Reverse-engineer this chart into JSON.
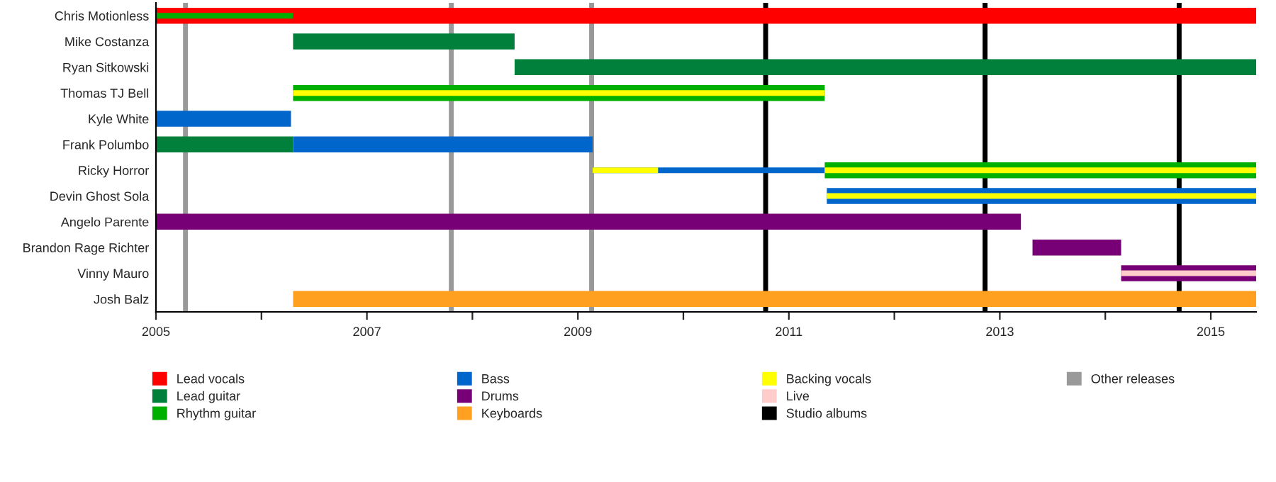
{
  "chart_data": {
    "type": "bar",
    "orientation": "horizontal",
    "categories": [
      "Chris Motionless",
      "Mike Costanza",
      "Ryan Sitkowski",
      "Thomas TJ Bell",
      "Kyle White",
      "Frank Polumbo",
      "Ricky Horror",
      "Devin Ghost Sola",
      "Angelo Parente",
      "Brandon Rage Richter",
      "Vinny Mauro",
      "Josh Balz"
    ],
    "series": [
      {
        "name": "Lead vocals",
        "color": "#ff0000",
        "base": [
          2005,
          null,
          null,
          null,
          null,
          null,
          null,
          null,
          null,
          null,
          null,
          null
        ],
        "values": [
          10.43,
          null,
          null,
          null,
          null,
          null,
          null,
          null,
          null,
          null,
          null,
          null
        ]
      },
      {
        "name": "Lead guitar",
        "color": "#00803a",
        "base": [
          null,
          2006.3,
          2008.4,
          null,
          null,
          2005,
          null,
          null,
          null,
          null,
          null,
          null
        ],
        "values": [
          null,
          2.1,
          7.03,
          null,
          null,
          1.3,
          null,
          null,
          null,
          null,
          null,
          null
        ]
      },
      {
        "name": "Rhythm guitar",
        "color": "#00b000",
        "base": [
          2005,
          null,
          null,
          2006.3,
          null,
          null,
          2011.34,
          null,
          null,
          null,
          null,
          null
        ],
        "values": [
          1.3,
          null,
          null,
          5.04,
          null,
          null,
          4.09,
          null,
          null,
          null,
          null,
          null
        ]
      },
      {
        "name": "Bass",
        "color": "#0066cc",
        "base": [
          null,
          null,
          null,
          null,
          2005,
          2006.3,
          2009.14,
          2011.36,
          null,
          null,
          null,
          null
        ],
        "values": [
          null,
          null,
          null,
          null,
          1.28,
          2.84,
          2.2,
          4.07,
          null,
          null,
          null,
          null
        ]
      },
      {
        "name": "Drums",
        "color": "#770077",
        "base": [
          null,
          null,
          null,
          null,
          null,
          null,
          null,
          null,
          2005,
          2013.31,
          2014.15,
          null
        ],
        "values": [
          null,
          null,
          null,
          null,
          null,
          null,
          null,
          null,
          8.2,
          0.84,
          1.28,
          null
        ]
      },
      {
        "name": "Keyboards",
        "color": "#ffa020",
        "base": [
          null,
          null,
          null,
          null,
          null,
          null,
          null,
          null,
          null,
          null,
          null,
          2006.3
        ],
        "values": [
          null,
          null,
          null,
          null,
          null,
          null,
          null,
          null,
          null,
          null,
          null,
          9.13
        ]
      },
      {
        "name": "Backing vocals",
        "color": "#ffff00",
        "base": [
          null,
          null,
          null,
          2006.3,
          null,
          null,
          2009.14,
          2011.36,
          null,
          null,
          null,
          null
        ],
        "values": [
          null,
          null,
          null,
          5.04,
          null,
          null,
          0.62,
          4.07,
          null,
          null,
          null,
          null
        ]
      },
      {
        "color": "#ffff00",
        "base": [
          null,
          null,
          null,
          null,
          null,
          null,
          2011.34,
          null,
          null,
          null,
          null,
          null
        ],
        "values": [
          null,
          null,
          null,
          null,
          null,
          null,
          4.09,
          null,
          null,
          null,
          null,
          null
        ]
      },
      {
        "name": "Live",
        "color": "#ffcccc",
        "base": [
          null,
          null,
          null,
          null,
          null,
          null,
          null,
          null,
          null,
          null,
          2014.15,
          null
        ],
        "values": [
          null,
          null,
          null,
          null,
          null,
          null,
          null,
          null,
          null,
          null,
          1.28,
          null
        ]
      }
    ],
    "ref_lines": [
      {
        "axis": "x",
        "value": 2010.78,
        "label": "Studio albums",
        "color": "#000000"
      },
      {
        "axis": "x",
        "value": 2012.86,
        "color": "#000000"
      },
      {
        "axis": "x",
        "value": 2014.7,
        "color": "#000000"
      },
      {
        "axis": "x",
        "value": 2005.28,
        "label": "Other releases",
        "color": "#999999"
      },
      {
        "axis": "x",
        "value": 2007.8,
        "color": "#999999"
      },
      {
        "axis": "x",
        "value": 2009.13,
        "color": "#999999"
      }
    ],
    "xlim": [
      2005,
      2015.43
    ],
    "xticks": [
      2005,
      {
        "value": 2006,
        "label": null
      },
      2007,
      {
        "value": 2008,
        "label": null
      },
      2009,
      {
        "value": 2010,
        "label": null
      },
      2011,
      {
        "value": 2012,
        "label": null
      },
      2013,
      {
        "value": 2014,
        "label": null
      },
      2015
    ],
    "grid": false,
    "legend": "bottom"
  }
}
